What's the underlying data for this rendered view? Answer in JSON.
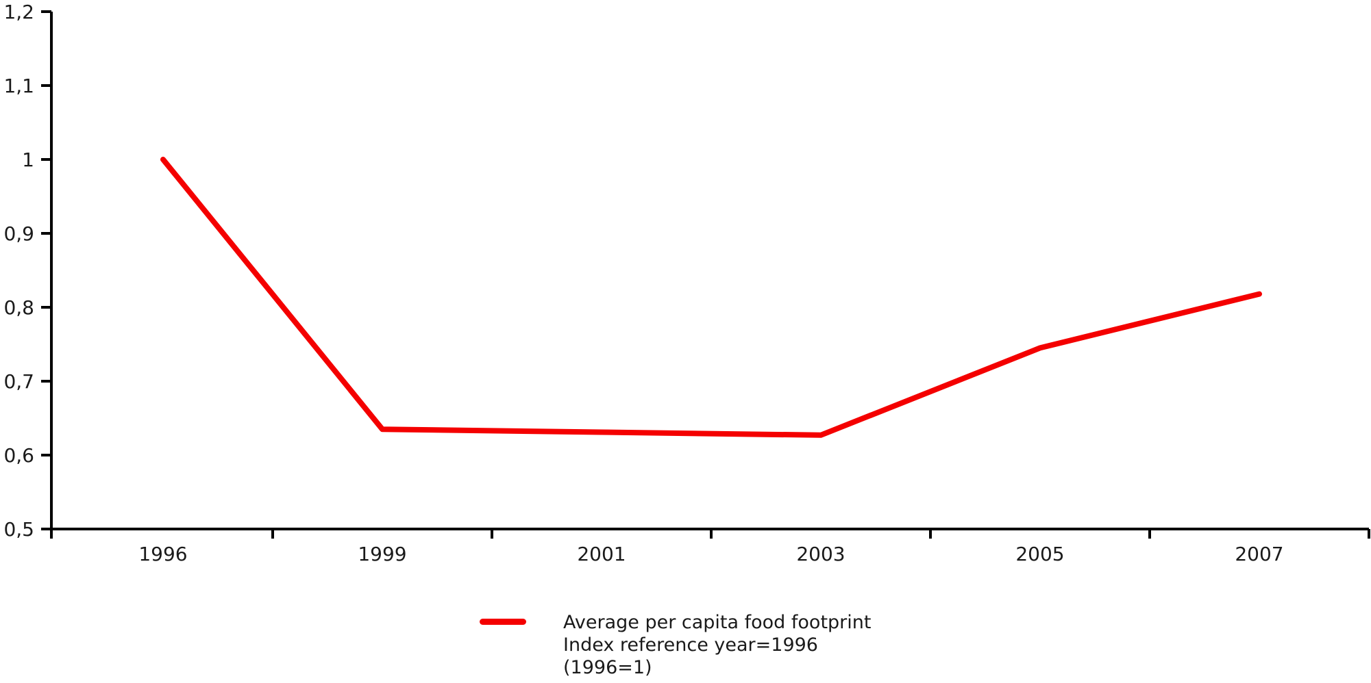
{
  "chart_data": {
    "type": "line",
    "title": "",
    "xlabel": "",
    "ylabel": "",
    "categories": [
      "1996",
      "1999",
      "2001",
      "2003",
      "2005",
      "2007"
    ],
    "series": [
      {
        "name": "Average per capita food footprint Index reference year=1996 (1996=1)",
        "color": "#f40000",
        "values": [
          1.0,
          0.635,
          0.631,
          0.627,
          0.745,
          0.818
        ]
      }
    ],
    "ylim": [
      0.5,
      1.2
    ],
    "ytick_step": 0.1,
    "yticks": [
      {
        "value": 1.2,
        "label": "1,2"
      },
      {
        "value": 1.1,
        "label": "1,1"
      },
      {
        "value": 1.0,
        "label": "1"
      },
      {
        "value": 0.9,
        "label": "0,9"
      },
      {
        "value": 0.8,
        "label": "0,8"
      },
      {
        "value": 0.7,
        "label": "0,7"
      },
      {
        "value": 0.6,
        "label": "0,6"
      },
      {
        "value": 0.5,
        "label": "0,5"
      }
    ],
    "decimal_separator": ",",
    "grid": false,
    "legend_position": "bottom-center"
  },
  "legend": {
    "swatch_color": "#f40000",
    "lines": [
      "Average per capita food footprint",
      "Index reference year=1996",
      "(1996=1)"
    ]
  },
  "colors": {
    "line": "#f40000",
    "axis": "#000000",
    "text": "#1a1a1a",
    "background": "#ffffff"
  }
}
